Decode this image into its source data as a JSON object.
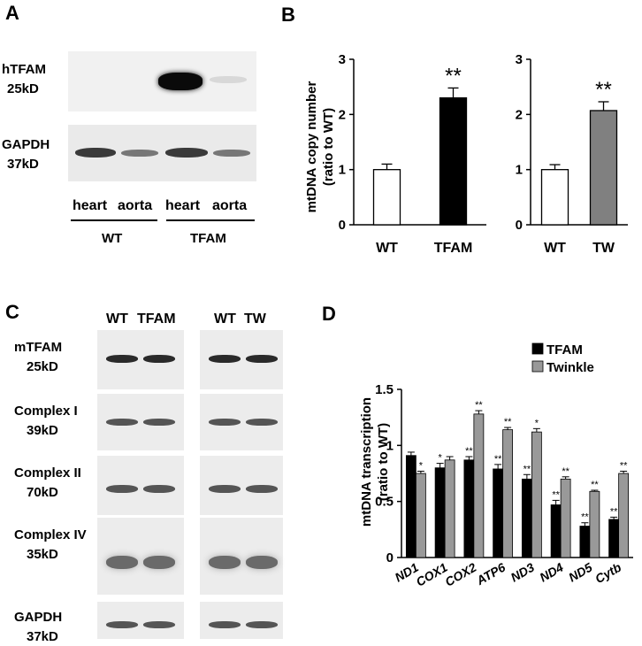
{
  "panelA": {
    "letter": "A",
    "hTFAM": {
      "name": "hTFAM",
      "size": "25kD"
    },
    "GAPDH": {
      "name": "GAPDH",
      "size": "37kD"
    },
    "lanes": [
      "heart",
      "aorta",
      "heart",
      "aorta"
    ],
    "groups": [
      "WT",
      "TFAM"
    ]
  },
  "panelC": {
    "letter": "C",
    "lane_headers": [
      "WT",
      "TFAM",
      "WT",
      "TW"
    ],
    "rows": [
      {
        "name": "mTFAM",
        "size": "25kD"
      },
      {
        "name": "Complex I",
        "size": "39kD"
      },
      {
        "name": "Complex II",
        "size": "70kD"
      },
      {
        "name": "Complex IV",
        "size": "35kD"
      },
      {
        "name": "GAPDH",
        "size": "37kD"
      }
    ]
  },
  "chart_data": [
    {
      "panel": "B",
      "type": "bar",
      "categories": [
        "WT",
        "TFAM"
      ],
      "values": [
        1.0,
        2.3
      ],
      "errors": [
        0.1,
        0.18
      ],
      "significance": [
        "",
        "**"
      ],
      "colors": [
        "#ffffff",
        "#000000"
      ],
      "ylabel": "mtDNA copy number\n(ratio to WT)",
      "ylim": [
        0,
        3
      ],
      "yticks": [
        0,
        1,
        2,
        3
      ]
    },
    {
      "panel": "B2",
      "type": "bar",
      "categories": [
        "WT",
        "TW"
      ],
      "values": [
        1.0,
        2.07
      ],
      "errors": [
        0.09,
        0.16
      ],
      "significance": [
        "",
        "**"
      ],
      "colors": [
        "#ffffff",
        "#808080"
      ],
      "ylim": [
        0,
        3
      ],
      "yticks": [
        0,
        1,
        2,
        3
      ]
    },
    {
      "panel": "D",
      "type": "bar",
      "categories": [
        "ND1",
        "COX1",
        "COX2",
        "ATP6",
        "ND3",
        "ND4",
        "ND5",
        "Cytb"
      ],
      "series": [
        {
          "name": "TFAM",
          "color": "#000000",
          "values": [
            0.91,
            0.8,
            0.87,
            0.79,
            0.7,
            0.47,
            0.28,
            0.34
          ],
          "errors": [
            0.03,
            0.04,
            0.03,
            0.04,
            0.04,
            0.04,
            0.03,
            0.02
          ],
          "significance": [
            "",
            "*",
            "**",
            "**",
            "**",
            "**",
            "**",
            "**"
          ]
        },
        {
          "name": "Twinkle",
          "color": "#999999",
          "values": [
            0.75,
            0.87,
            1.28,
            1.14,
            1.12,
            0.7,
            0.59,
            0.75
          ],
          "errors": [
            0.02,
            0.03,
            0.03,
            0.02,
            0.03,
            0.02,
            0.01,
            0.02
          ],
          "significance": [
            "*",
            "",
            "**",
            "**",
            "*",
            "**",
            "**",
            "**"
          ]
        }
      ],
      "ylabel": "mtDNA transcription\n(ratio to WT)",
      "ylim": [
        0,
        1.5
      ],
      "yticks": [
        0,
        0.5,
        1,
        1.5
      ],
      "ytick_labels": [
        "0",
        "0.5",
        "1",
        "1.5"
      ],
      "legend": "top-right"
    }
  ],
  "panelB": {
    "letter": "B"
  },
  "panelD": {
    "letter": "D"
  }
}
